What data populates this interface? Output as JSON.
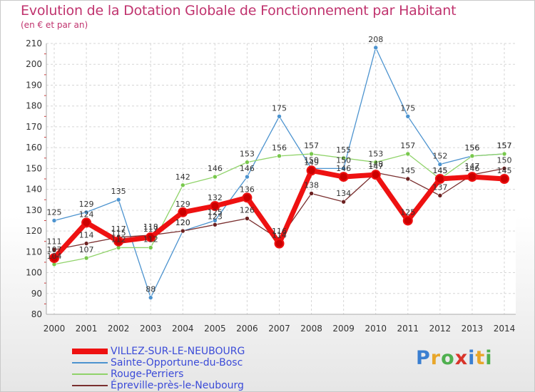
{
  "header": {
    "title": "Evolution de la Dotation Globale de Fonctionnement par Habitant",
    "subtitle": "(en € et par an)"
  },
  "logo": {
    "text": "Proxiti",
    "colors": [
      "#3a7fd1",
      "#e8a62a",
      "#4fb04f",
      "#d8342a",
      "#3a7fd1",
      "#e8a62a",
      "#4fb04f"
    ]
  },
  "chart_data": {
    "type": "line",
    "title": "Evolution de la Dotation Globale de Fonctionnement par Habitant",
    "subtitle": "(en € et par an)",
    "xlabel": "",
    "ylabel": "",
    "ylim": [
      80,
      210
    ],
    "yticks": [
      80,
      90,
      100,
      110,
      120,
      130,
      140,
      150,
      160,
      170,
      180,
      190,
      200,
      210
    ],
    "categories": [
      "2000",
      "2001",
      "2002",
      "2003",
      "2004",
      "2005",
      "2006",
      "2007",
      "2008",
      "2009",
      "2010",
      "2011",
      "2012",
      "2013",
      "2014"
    ],
    "grid": true,
    "legend_position": "bottom-left",
    "series": [
      {
        "name": "VILLEZ-SUR-LE-NEUBOURG",
        "color": "#ee1111",
        "marker": "#cc0000",
        "values": [
          107,
          124,
          115,
          117,
          129,
          132,
          136,
          114,
          149,
          146,
          147,
          125,
          145,
          146,
          145
        ]
      },
      {
        "name": "Sainte-Opportune-du-Bosc",
        "color": "#4c93cf",
        "marker": "#4c93cf",
        "values": [
          125,
          129,
          135,
          88,
          120,
          125,
          146,
          175,
          150,
          150,
          208,
          175,
          152,
          156,
          157
        ]
      },
      {
        "name": "Rouge-Perriers",
        "color": "#90d36a",
        "marker": "#78c84c",
        "values": [
          104,
          107,
          112,
          112,
          142,
          146,
          153,
          156,
          157,
          155,
          153,
          157,
          145,
          156,
          157
        ]
      },
      {
        "name": "Épreville-près-le-Neubourg",
        "color": "#7a2f2f",
        "marker": "#6b2020",
        "values": [
          111,
          114,
          117,
          118,
          120,
          123,
          126,
          116,
          138,
          134,
          148,
          145,
          137,
          147,
          150
        ]
      }
    ]
  }
}
